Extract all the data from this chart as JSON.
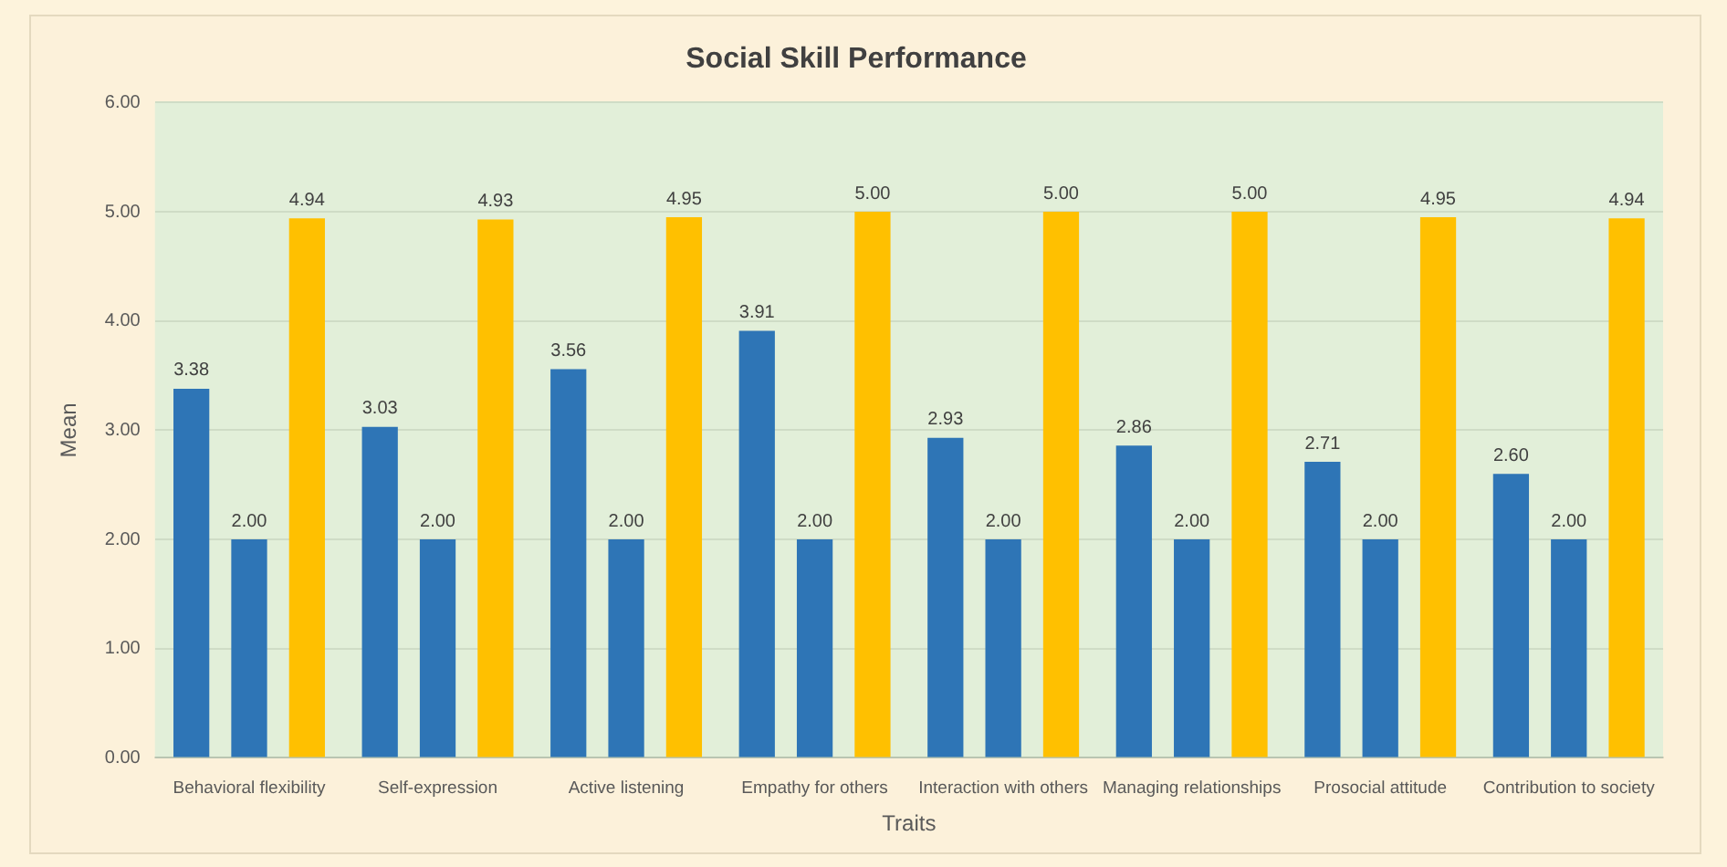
{
  "chart_data": {
    "type": "bar",
    "title": "Social Skill Performance",
    "xlabel": "Traits",
    "ylabel": "Mean",
    "categories": [
      "Behavioral flexibility",
      "Self-expression",
      "Active listening",
      "Empathy for others",
      "Interaction with others",
      "Managing relationships",
      "Prosocial attitude",
      "Contribution to society"
    ],
    "series": [
      {
        "color": "#2e75b6",
        "values": [
          3.38,
          3.03,
          3.56,
          3.91,
          2.93,
          2.86,
          2.71,
          2.6
        ],
        "value_labels": [
          "3.38",
          "3.03",
          "3.56",
          "3.91",
          "2.93",
          "2.86",
          "2.71",
          "2.60"
        ]
      },
      {
        "color": "#2e75b6",
        "values": [
          2.0,
          2.0,
          2.0,
          2.0,
          2.0,
          2.0,
          2.0,
          2.0
        ],
        "value_labels": [
          "2.00",
          "2.00",
          "2.00",
          "2.00",
          "2.00",
          "2.00",
          "2.00",
          "2.00"
        ]
      },
      {
        "color": "#ffc000",
        "values": [
          4.94,
          4.93,
          4.95,
          5.0,
          5.0,
          5.0,
          4.95,
          4.94
        ],
        "value_labels": [
          "4.94",
          "4.93",
          "4.95",
          "5.00",
          "5.00",
          "5.00",
          "4.95",
          "4.94"
        ]
      }
    ],
    "ylim": [
      0,
      6
    ],
    "yticks": [
      {
        "value": 0,
        "label": "0.00"
      },
      {
        "value": 1,
        "label": "1.00"
      },
      {
        "value": 2,
        "label": "2.00"
      },
      {
        "value": 3,
        "label": "3.00"
      },
      {
        "value": 4,
        "label": "4.00"
      },
      {
        "value": 5,
        "label": "5.00"
      },
      {
        "value": 6,
        "label": "6.00"
      }
    ],
    "grid": "y",
    "legend": false
  }
}
